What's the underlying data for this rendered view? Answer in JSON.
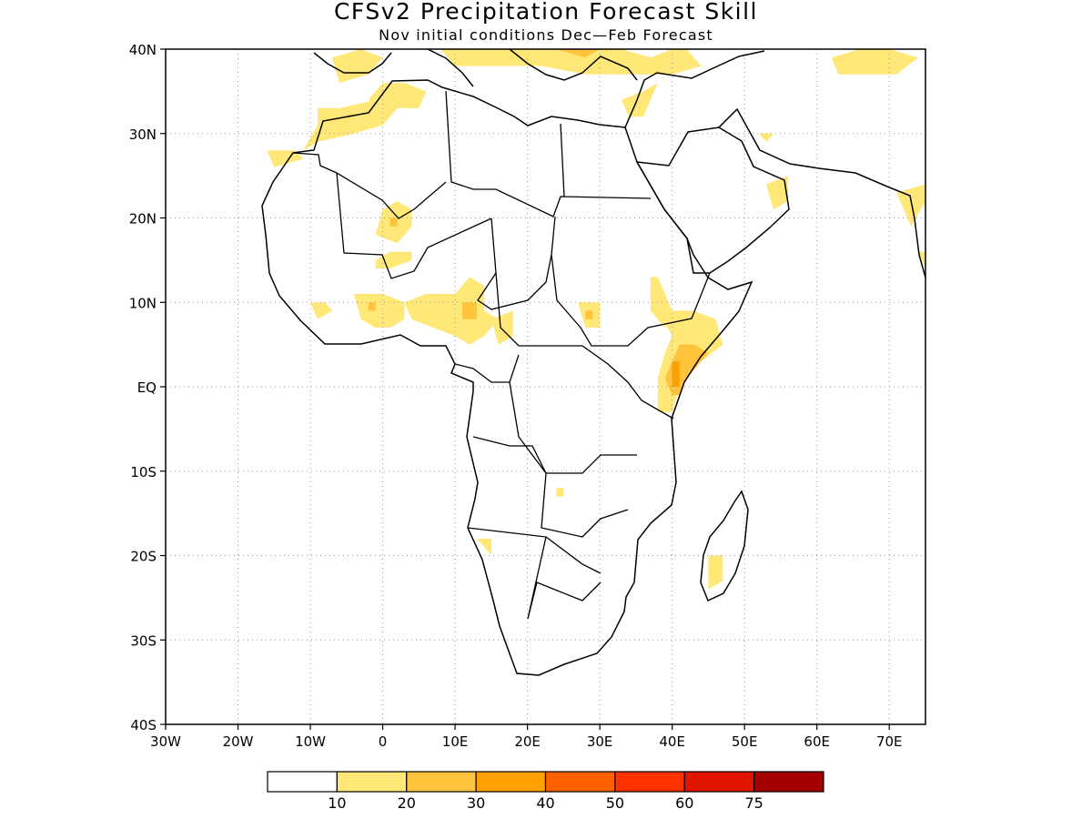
{
  "title": "CFSv2 Precipitation Forecast Skill",
  "subtitle": "Nov initial conditions  Dec—Feb Forecast",
  "map": {
    "lon_range": [
      -30,
      75
    ],
    "lat_range": [
      -40,
      40
    ],
    "gridlines": "dotted",
    "x_ticks": [
      {
        "lon": -30,
        "label": "30W"
      },
      {
        "lon": -20,
        "label": "20W"
      },
      {
        "lon": -10,
        "label": "10W"
      },
      {
        "lon": 0,
        "label": "0"
      },
      {
        "lon": 10,
        "label": "10E"
      },
      {
        "lon": 20,
        "label": "20E"
      },
      {
        "lon": 30,
        "label": "30E"
      },
      {
        "lon": 40,
        "label": "40E"
      },
      {
        "lon": 50,
        "label": "50E"
      },
      {
        "lon": 60,
        "label": "60E"
      },
      {
        "lon": 70,
        "label": "70E"
      }
    ],
    "y_ticks": [
      {
        "lat": 40,
        "label": "40N"
      },
      {
        "lat": 30,
        "label": "30N"
      },
      {
        "lat": 20,
        "label": "20N"
      },
      {
        "lat": 10,
        "label": "10N"
      },
      {
        "lat": 0,
        "label": "EQ"
      },
      {
        "lat": -10,
        "label": "10S"
      },
      {
        "lat": -20,
        "label": "20S"
      },
      {
        "lat": -30,
        "label": "30S"
      },
      {
        "lat": -40,
        "label": "40S"
      }
    ],
    "skill_regions": [
      {
        "level": 1,
        "points": [
          [
            -7,
            39
          ],
          [
            -3,
            40
          ],
          [
            0,
            39
          ],
          [
            -2,
            37
          ],
          [
            -6,
            36
          ]
        ]
      },
      {
        "level": 1,
        "points": [
          [
            -9,
            33
          ],
          [
            -6,
            33
          ],
          [
            -1,
            34
          ],
          [
            2,
            36
          ],
          [
            3,
            34
          ],
          [
            0,
            31
          ],
          [
            -4,
            30
          ],
          [
            -9,
            29
          ],
          [
            -11,
            28
          ],
          [
            -9,
            31
          ]
        ]
      },
      {
        "level": 1,
        "points": [
          [
            -2,
            34
          ],
          [
            0,
            36
          ],
          [
            3,
            36
          ],
          [
            6,
            35
          ],
          [
            5,
            33
          ],
          [
            2,
            33
          ]
        ]
      },
      {
        "level": 1,
        "points": [
          [
            -16,
            28
          ],
          [
            -12,
            28
          ],
          [
            -11,
            27
          ],
          [
            -15,
            26
          ]
        ]
      },
      {
        "level": 1,
        "points": [
          [
            8,
            40
          ],
          [
            14,
            40
          ],
          [
            25,
            40
          ],
          [
            33,
            40
          ],
          [
            37,
            39
          ],
          [
            40,
            40
          ],
          [
            42,
            40
          ],
          [
            44,
            38
          ],
          [
            40,
            37
          ],
          [
            35,
            37
          ],
          [
            28,
            37
          ],
          [
            22,
            38
          ],
          [
            15,
            38
          ],
          [
            10,
            38
          ]
        ]
      },
      {
        "level": 2,
        "points": [
          [
            24,
            40
          ],
          [
            30,
            40
          ],
          [
            28,
            39
          ]
        ]
      },
      {
        "level": 1,
        "points": [
          [
            33,
            34
          ],
          [
            36,
            35
          ],
          [
            38,
            36
          ],
          [
            36,
            32
          ],
          [
            34,
            32
          ]
        ]
      },
      {
        "level": 1,
        "points": [
          [
            62,
            39
          ],
          [
            66,
            40
          ],
          [
            70,
            40
          ],
          [
            74,
            39
          ],
          [
            71,
            37
          ],
          [
            66,
            37
          ],
          [
            63,
            37
          ]
        ]
      },
      {
        "level": 1,
        "points": [
          [
            0,
            21
          ],
          [
            2,
            22
          ],
          [
            4,
            21
          ],
          [
            4,
            19
          ],
          [
            2,
            17
          ],
          [
            -1,
            18
          ]
        ]
      },
      {
        "level": 2,
        "points": [
          [
            1,
            20
          ],
          [
            2,
            20
          ],
          [
            2,
            19
          ],
          [
            1,
            19
          ]
        ]
      },
      {
        "level": 1,
        "points": [
          [
            -1,
            15
          ],
          [
            1,
            16
          ],
          [
            4,
            16
          ],
          [
            4,
            15
          ],
          [
            1,
            14
          ],
          [
            -1,
            14
          ]
        ]
      },
      {
        "level": 1,
        "points": [
          [
            -10,
            10
          ],
          [
            -8,
            10
          ],
          [
            -7,
            9
          ],
          [
            -9,
            8
          ]
        ]
      },
      {
        "level": 1,
        "points": [
          [
            -4,
            11
          ],
          [
            0,
            11
          ],
          [
            3,
            10
          ],
          [
            3,
            8
          ],
          [
            1,
            7
          ],
          [
            -1,
            7
          ],
          [
            -3,
            8
          ]
        ]
      },
      {
        "level": 2,
        "points": [
          [
            -2,
            10
          ],
          [
            -1,
            10
          ],
          [
            -1,
            9
          ],
          [
            -2,
            9
          ]
        ]
      },
      {
        "level": 1,
        "points": [
          [
            3,
            10
          ],
          [
            6,
            11
          ],
          [
            10,
            11
          ],
          [
            12,
            13
          ],
          [
            14,
            12
          ],
          [
            14,
            9
          ],
          [
            16,
            8
          ],
          [
            14,
            6
          ],
          [
            12,
            5
          ],
          [
            10,
            6
          ],
          [
            7,
            7
          ],
          [
            4,
            8
          ]
        ]
      },
      {
        "level": 2,
        "points": [
          [
            11,
            10
          ],
          [
            13,
            10
          ],
          [
            13,
            8
          ],
          [
            11,
            8
          ]
        ]
      },
      {
        "level": 1,
        "points": [
          [
            15,
            8
          ],
          [
            18,
            9
          ],
          [
            18,
            6
          ],
          [
            16,
            5
          ]
        ]
      },
      {
        "level": 1,
        "points": [
          [
            27,
            10
          ],
          [
            30,
            10
          ],
          [
            30,
            7
          ],
          [
            28,
            7
          ]
        ]
      },
      {
        "level": 2,
        "points": [
          [
            28,
            9
          ],
          [
            29,
            9
          ],
          [
            29,
            8
          ],
          [
            28,
            8
          ]
        ]
      },
      {
        "level": 1,
        "points": [
          [
            37,
            13
          ],
          [
            38,
            13
          ],
          [
            40,
            9
          ],
          [
            39,
            7
          ],
          [
            37,
            9
          ]
        ]
      },
      {
        "level": 1,
        "points": [
          [
            38,
            9
          ],
          [
            43,
            9
          ],
          [
            46,
            8
          ],
          [
            47,
            5
          ],
          [
            44,
            3
          ],
          [
            42,
            2
          ],
          [
            41,
            0
          ],
          [
            40,
            -3
          ],
          [
            38,
            -3
          ],
          [
            38,
            1
          ],
          [
            39,
            4
          ],
          [
            40,
            6
          ]
        ]
      },
      {
        "level": 2,
        "points": [
          [
            41,
            5
          ],
          [
            43,
            5
          ],
          [
            45,
            4
          ],
          [
            43,
            2
          ],
          [
            42,
            1
          ],
          [
            41,
            -1
          ],
          [
            40,
            -1
          ],
          [
            39,
            1
          ],
          [
            40,
            3
          ]
        ]
      },
      {
        "level": 3,
        "points": [
          [
            40,
            3
          ],
          [
            41,
            3
          ],
          [
            41,
            0
          ],
          [
            40,
            0
          ]
        ]
      },
      {
        "level": 1,
        "points": [
          [
            52,
            30
          ],
          [
            54,
            30
          ],
          [
            53,
            29
          ]
        ]
      },
      {
        "level": 1,
        "points": [
          [
            53,
            24
          ],
          [
            56,
            25
          ],
          [
            56,
            22
          ],
          [
            54,
            21
          ]
        ]
      },
      {
        "level": 1,
        "points": [
          [
            71,
            23
          ],
          [
            75,
            24
          ],
          [
            75,
            22
          ],
          [
            73,
            19
          ]
        ]
      },
      {
        "level": 1,
        "points": [
          [
            74,
            16
          ],
          [
            75,
            16
          ],
          [
            75,
            14
          ]
        ]
      },
      {
        "level": 1,
        "points": [
          [
            45,
            -20
          ],
          [
            47,
            -20
          ],
          [
            47,
            -23
          ],
          [
            45,
            -24
          ]
        ]
      },
      {
        "level": 1,
        "points": [
          [
            13,
            -18
          ],
          [
            15,
            -18
          ],
          [
            15,
            -20
          ]
        ]
      },
      {
        "level": 1,
        "points": [
          [
            24,
            -12
          ],
          [
            25,
            -12
          ],
          [
            25,
            -13
          ],
          [
            24,
            -13
          ]
        ]
      }
    ]
  },
  "colorbar": {
    "colors": [
      "#ffffff",
      "#ffe778",
      "#ffc33c",
      "#ffa000",
      "#ff6000",
      "#ff3200",
      "#e11400",
      "#a50000"
    ],
    "labels": [
      "10",
      "20",
      "30",
      "40",
      "50",
      "60",
      "75"
    ]
  }
}
